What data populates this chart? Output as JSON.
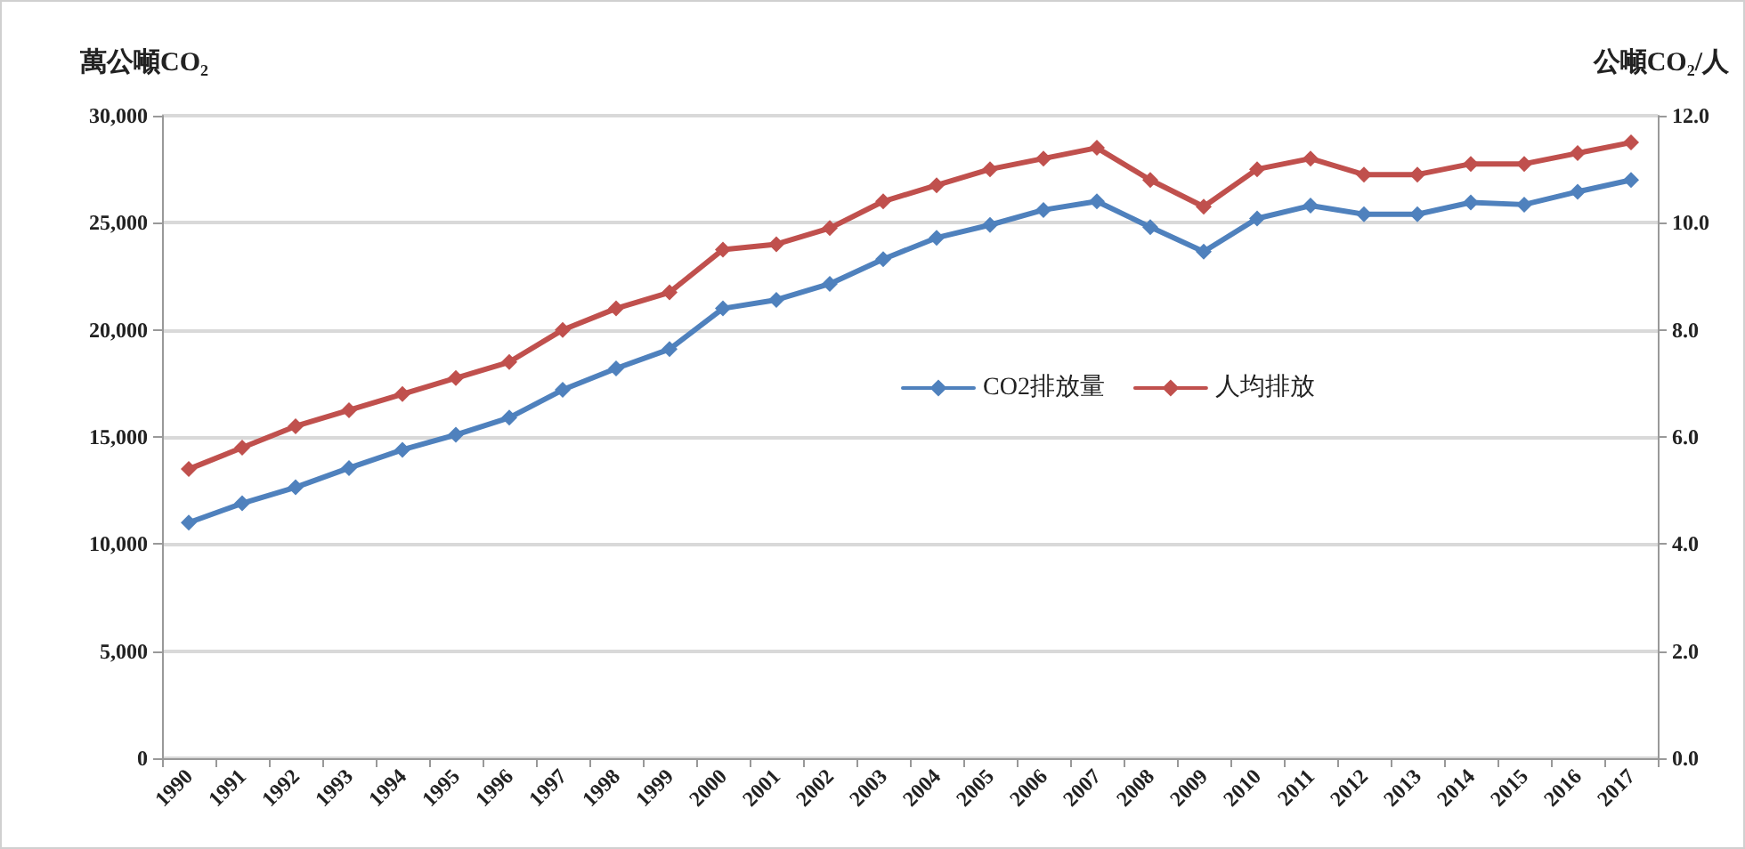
{
  "chart_data": {
    "type": "line",
    "ylabel": "萬公噸CO₂",
    "y2label": "公噸CO₂/人",
    "categories": [
      "1990",
      "1991",
      "1992",
      "1993",
      "1994",
      "1995",
      "1996",
      "1997",
      "1998",
      "1999",
      "2000",
      "2001",
      "2002",
      "2003",
      "2004",
      "2005",
      "2006",
      "2007",
      "2008",
      "2009",
      "2010",
      "2011",
      "2012",
      "2013",
      "2014",
      "2015",
      "2016",
      "2017"
    ],
    "series": [
      {
        "name": "CO2排放量",
        "color": "#4f81bd",
        "values": [
          11000,
          11900,
          12650,
          13550,
          14400,
          15100,
          15900,
          17200,
          18200,
          19100,
          21000,
          21400,
          22150,
          23300,
          24300,
          24900,
          25600,
          26000,
          24800,
          23650,
          25200,
          25800,
          25400,
          25400,
          25950,
          25850,
          26450,
          27000
        ]
      },
      {
        "name": "人均排放",
        "color": "#c0504d",
        "axis": "y2",
        "values": [
          5.4,
          5.8,
          6.2,
          6.5,
          6.8,
          7.1,
          7.4,
          8.0,
          8.4,
          8.7,
          9.5,
          9.6,
          9.9,
          10.4,
          10.7,
          11.0,
          11.2,
          11.4,
          10.8,
          10.3,
          11.0,
          11.2,
          10.9,
          10.9,
          11.1,
          11.1,
          11.3,
          11.5
        ]
      }
    ],
    "ylim": [
      0,
      30000
    ],
    "yticks": [
      {
        "value": 0,
        "label": "0"
      },
      {
        "value": 5000,
        "label": "5,000"
      },
      {
        "value": 10000,
        "label": "10,000"
      },
      {
        "value": 15000,
        "label": "15,000"
      },
      {
        "value": 20000,
        "label": "20,000"
      },
      {
        "value": 25000,
        "label": "25,000"
      },
      {
        "value": 30000,
        "label": "30,000"
      }
    ],
    "y2lim": [
      0,
      12
    ],
    "y2ticks": [
      {
        "value": 0,
        "label": "0.0"
      },
      {
        "value": 2,
        "label": "2.0"
      },
      {
        "value": 4,
        "label": "4.0"
      },
      {
        "value": 6,
        "label": "6.0"
      },
      {
        "value": 8,
        "label": "8.0"
      },
      {
        "value": 10,
        "label": "10.0"
      },
      {
        "value": 12,
        "label": "12.0"
      }
    ],
    "grid": "y",
    "legend": "center",
    "marker": "diamond",
    "line_style": "solid"
  }
}
